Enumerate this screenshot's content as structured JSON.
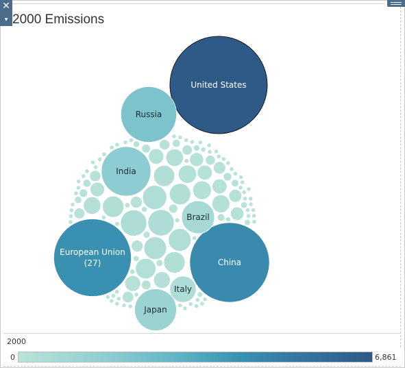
{
  "window": {
    "close_glyph": "✕",
    "dropdown_glyph": "▾"
  },
  "title": "2000 Emissions",
  "legend": {
    "title": "2000",
    "min_label": "0",
    "max_label": "6,861",
    "color_min": "#b9e3d8",
    "color_max": "#2e5a87"
  },
  "chart_data": {
    "type": "bubble",
    "title": "2000 Emissions",
    "color_field": "2000",
    "color_range": [
      0,
      6861
    ],
    "labeled_bubbles": [
      {
        "name": "United States",
        "value": 6861
      },
      {
        "name": "China",
        "value": 4600
      },
      {
        "name": "European Union (27)",
        "label_lines": [
          "European Union",
          "(27)"
        ],
        "value": 4350
      },
      {
        "name": "Russia",
        "value": 2250
      },
      {
        "name": "India",
        "value": 1770
      },
      {
        "name": "Japan",
        "value": 1270
      },
      {
        "name": "Brazil",
        "value": 780
      },
      {
        "name": "Italy",
        "value": 500
      }
    ],
    "unlabeled_bubble_values": [
      500,
      500,
      420,
      370,
      370,
      330,
      330,
      330,
      320,
      300,
      250,
      240,
      230,
      220,
      220,
      200,
      180,
      170,
      160,
      160,
      150,
      140,
      130,
      120,
      110,
      100,
      100,
      95,
      90,
      85,
      80,
      75,
      70,
      65,
      60,
      55,
      50,
      50,
      45,
      45,
      40,
      40,
      38,
      35,
      33,
      30,
      30,
      28,
      26,
      25,
      24,
      22,
      20,
      20,
      19,
      18,
      17,
      16,
      15,
      15,
      14,
      13,
      12,
      12,
      11,
      10,
      10,
      10,
      9,
      9,
      8,
      8,
      7,
      7,
      7,
      6,
      6,
      6,
      5,
      5,
      5,
      5,
      4,
      4,
      4,
      4,
      3,
      3,
      3,
      3,
      3,
      2,
      2,
      2,
      2,
      2,
      2,
      2,
      1,
      1,
      1,
      1,
      1,
      1,
      1,
      1,
      1,
      1,
      1,
      1,
      1,
      1,
      1,
      1,
      1,
      1,
      1,
      1,
      1,
      1
    ]
  }
}
